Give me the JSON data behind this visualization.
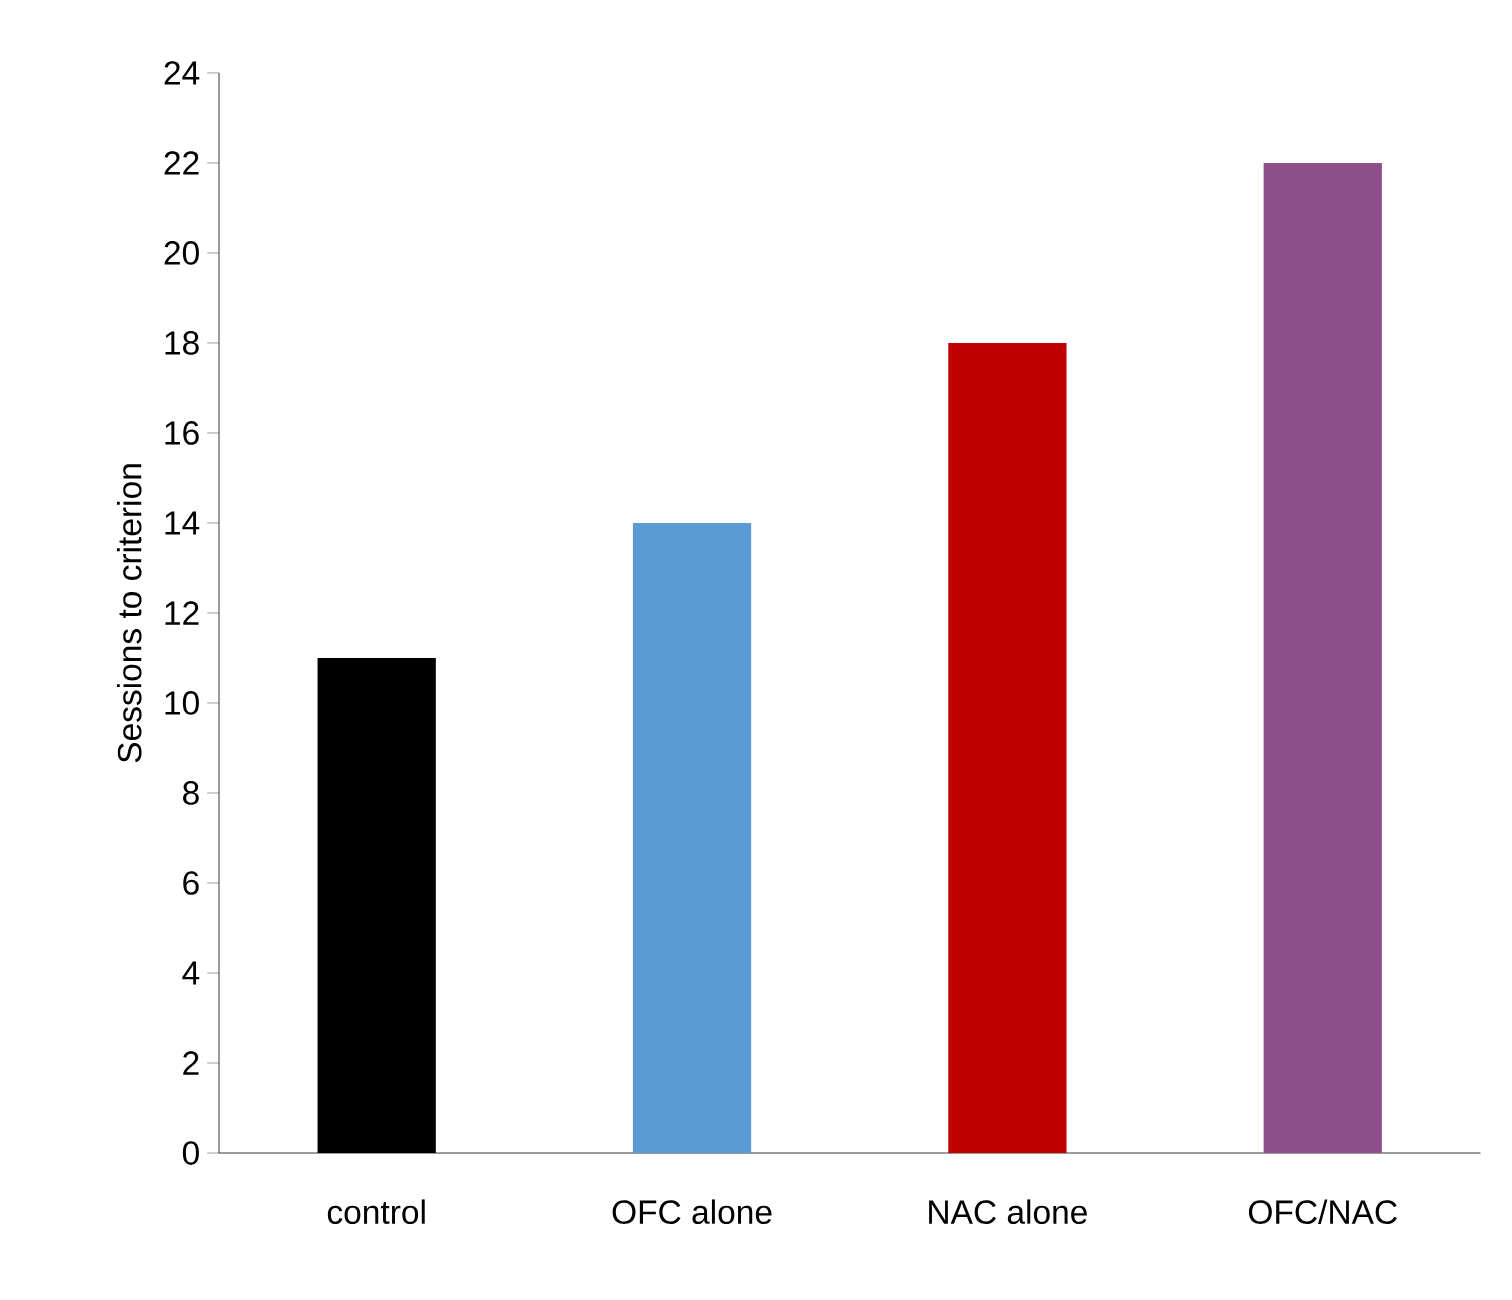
{
  "chart_data": {
    "type": "bar",
    "ylabel": "Sessions to criterion",
    "categories": [
      "control",
      "OFC alone",
      "NAC alone",
      "OFC/NAC"
    ],
    "values": [
      11,
      14,
      18,
      22
    ],
    "colors": [
      "#000000",
      "#5b9bd5",
      "#c00000",
      "#8d4e8a"
    ],
    "ylim": [
      0,
      24
    ],
    "yticks": [
      0,
      2,
      4,
      6,
      8,
      10,
      12,
      14,
      16,
      18,
      20,
      22,
      24
    ],
    "grid": false
  }
}
